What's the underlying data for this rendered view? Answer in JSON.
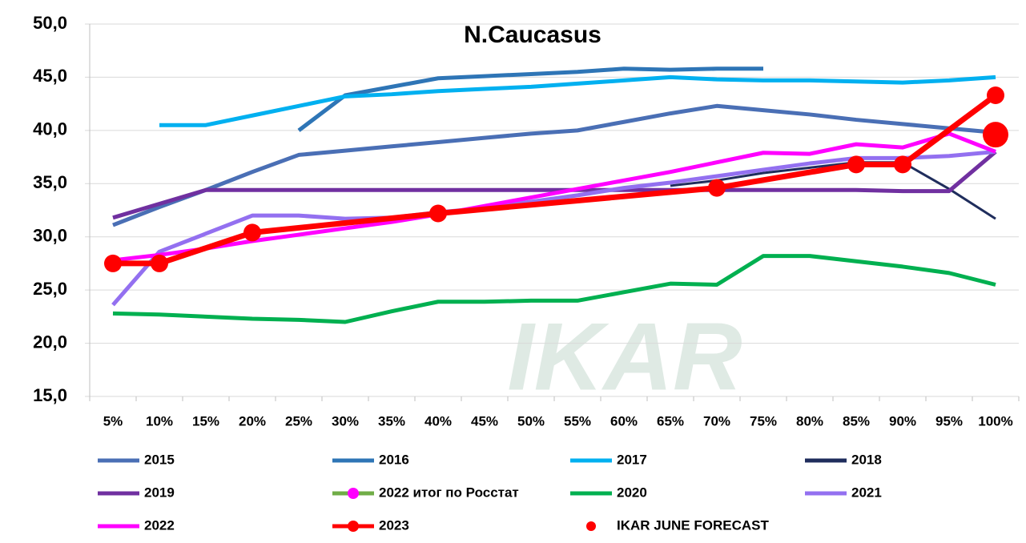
{
  "chart_data": {
    "type": "line",
    "title": "N.Caucasus",
    "watermark": "IKAR",
    "categories": [
      "5%",
      "10%",
      "15%",
      "20%",
      "25%",
      "30%",
      "35%",
      "40%",
      "45%",
      "50%",
      "55%",
      "60%",
      "65%",
      "70%",
      "75%",
      "80%",
      "85%",
      "90%",
      "95%",
      "100%"
    ],
    "ylim": [
      15,
      50
    ],
    "yticks": [
      {
        "value": 15,
        "label": "15,0"
      },
      {
        "value": 20,
        "label": "20,0"
      },
      {
        "value": 25,
        "label": "25,0"
      },
      {
        "value": 30,
        "label": "30,0"
      },
      {
        "value": 35,
        "label": "35,0"
      },
      {
        "value": 40,
        "label": "40,0"
      },
      {
        "value": 45,
        "label": "45,0"
      },
      {
        "value": 50,
        "label": "50,0"
      }
    ],
    "grid": true,
    "legend": "bottom",
    "series": [
      {
        "name": "2015",
        "color": "#4a6fb5",
        "values": [
          31.1,
          32.8,
          34.4,
          36.1,
          37.7,
          38.1,
          38.5,
          38.9,
          39.3,
          39.7,
          40.0,
          40.8,
          41.6,
          42.3,
          41.9,
          41.5,
          41.0,
          40.6,
          40.2,
          39.8
        ]
      },
      {
        "name": "2016",
        "color": "#2e75b6",
        "values": [
          null,
          null,
          null,
          null,
          40.0,
          43.3,
          44.1,
          44.9,
          45.1,
          45.3,
          45.5,
          45.8,
          45.7,
          45.8,
          45.8,
          null,
          null,
          null,
          null,
          null
        ]
      },
      {
        "name": "2017",
        "color": "#00b0f0",
        "values": [
          null,
          40.5,
          40.5,
          41.4,
          42.3,
          43.2,
          43.4,
          43.7,
          43.9,
          44.1,
          44.4,
          44.7,
          45.0,
          44.8,
          44.7,
          44.7,
          44.6,
          44.5,
          44.7,
          45.0
        ]
      },
      {
        "name": "2018",
        "color": "#1f2d5c",
        "values": [
          null,
          null,
          null,
          null,
          null,
          null,
          null,
          null,
          null,
          null,
          null,
          null,
          34.8,
          35.3,
          36.0,
          36.5,
          37.0,
          37.0,
          34.5,
          31.7
        ]
      },
      {
        "name": "2019",
        "color": "#7030a0",
        "values": [
          31.8,
          33.1,
          34.4,
          34.4,
          34.4,
          34.4,
          34.4,
          34.4,
          34.4,
          34.4,
          34.4,
          34.4,
          34.4,
          34.4,
          34.4,
          34.4,
          34.4,
          34.3,
          34.3,
          38.0
        ]
      },
      {
        "name": "2022 итог по Росстат",
        "color": "#70ad47",
        "marker_color": "#ff00ff",
        "marker": true,
        "values": [
          null,
          null,
          null,
          null,
          null,
          null,
          null,
          null,
          null,
          null,
          null,
          null,
          null,
          null,
          null,
          null,
          null,
          null,
          null,
          null
        ]
      },
      {
        "name": "2020",
        "color": "#00b050",
        "values": [
          22.8,
          22.7,
          22.5,
          22.3,
          22.2,
          22.0,
          23.0,
          23.9,
          23.9,
          24.0,
          24.0,
          24.8,
          25.6,
          25.5,
          28.2,
          28.2,
          27.7,
          27.2,
          26.6,
          25.5
        ]
      },
      {
        "name": "2021",
        "color": "#9370f0",
        "values": [
          23.6,
          28.6,
          30.3,
          32.0,
          32.0,
          31.7,
          31.8,
          32.3,
          32.7,
          33.3,
          33.9,
          34.6,
          35.1,
          35.7,
          36.3,
          36.9,
          37.4,
          37.4,
          37.6,
          38.0
        ]
      },
      {
        "name": "2022",
        "color": "#ff00ff",
        "values": [
          27.8,
          28.3,
          28.9,
          29.6,
          30.2,
          30.8,
          31.4,
          32.1,
          32.9,
          33.7,
          34.5,
          35.3,
          36.1,
          37.0,
          37.9,
          37.8,
          38.7,
          38.4,
          39.7,
          38.0
        ]
      },
      {
        "name": "2023",
        "color": "#ff0000",
        "marker": true,
        "span_gaps": true,
        "values": [
          27.5,
          27.5,
          null,
          30.4,
          null,
          null,
          null,
          32.2,
          null,
          null,
          null,
          null,
          null,
          34.6,
          null,
          null,
          36.8,
          36.8,
          null,
          43.3
        ]
      },
      {
        "name": "IKAR JUNE FORECAST",
        "color": "#ff0000",
        "marker": true,
        "line": false,
        "values": [
          null,
          null,
          null,
          null,
          null,
          null,
          null,
          null,
          null,
          null,
          null,
          null,
          null,
          null,
          null,
          null,
          null,
          null,
          null,
          39.6
        ]
      }
    ]
  }
}
